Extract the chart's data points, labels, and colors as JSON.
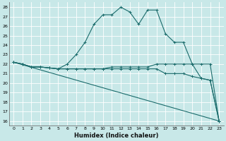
{
  "xlabel": "Humidex (Indice chaleur)",
  "bg_color": "#c8e8e8",
  "line_color": "#1a6b6b",
  "grid_color": "#ffffff",
  "xlim": [
    -0.5,
    23.5
  ],
  "ylim": [
    15.5,
    28.5
  ],
  "yticks": [
    16,
    17,
    18,
    19,
    20,
    21,
    22,
    23,
    24,
    25,
    26,
    27,
    28
  ],
  "xticks": [
    0,
    1,
    2,
    3,
    4,
    5,
    6,
    7,
    8,
    9,
    10,
    11,
    12,
    13,
    14,
    15,
    16,
    17,
    18,
    19,
    20,
    21,
    22,
    23
  ],
  "lines": [
    {
      "x": [
        0,
        1,
        2,
        3,
        4,
        5,
        6,
        7,
        8,
        9,
        10,
        11,
        12,
        13,
        14,
        15,
        16,
        17,
        18,
        19,
        20,
        21,
        22,
        23
      ],
      "y": [
        22.2,
        22.0,
        21.7,
        21.7,
        21.6,
        21.5,
        22.0,
        23.0,
        24.3,
        26.2,
        27.2,
        27.2,
        28.0,
        27.5,
        26.2,
        27.7,
        27.7,
        25.2,
        24.3,
        24.3,
        22.0,
        20.5,
        20.3,
        16.0
      ]
    },
    {
      "x": [
        0,
        1,
        2,
        3,
        4,
        5,
        6,
        7,
        8,
        9,
        10,
        11,
        12,
        13,
        14,
        15,
        16,
        17,
        18,
        19,
        20,
        21,
        22,
        23
      ],
      "y": [
        22.2,
        22.0,
        21.7,
        21.7,
        21.6,
        21.5,
        21.5,
        21.5,
        21.5,
        21.5,
        21.5,
        21.7,
        21.7,
        21.7,
        21.7,
        21.7,
        22.0,
        22.0,
        22.0,
        22.0,
        22.0,
        22.0,
        22.0,
        16.0
      ]
    },
    {
      "x": [
        0,
        1,
        2,
        3,
        4,
        5,
        6,
        7,
        8,
        9,
        10,
        11,
        12,
        13,
        14,
        15,
        16,
        17,
        18,
        19,
        20,
        21,
        22,
        23
      ],
      "y": [
        22.2,
        22.0,
        21.7,
        21.7,
        21.6,
        21.5,
        21.5,
        21.5,
        21.5,
        21.5,
        21.5,
        21.5,
        21.5,
        21.5,
        21.5,
        21.5,
        21.5,
        21.0,
        21.0,
        21.0,
        20.7,
        20.5,
        20.3,
        16.0
      ]
    },
    {
      "x": [
        0,
        23
      ],
      "y": [
        22.2,
        16.0
      ]
    }
  ]
}
